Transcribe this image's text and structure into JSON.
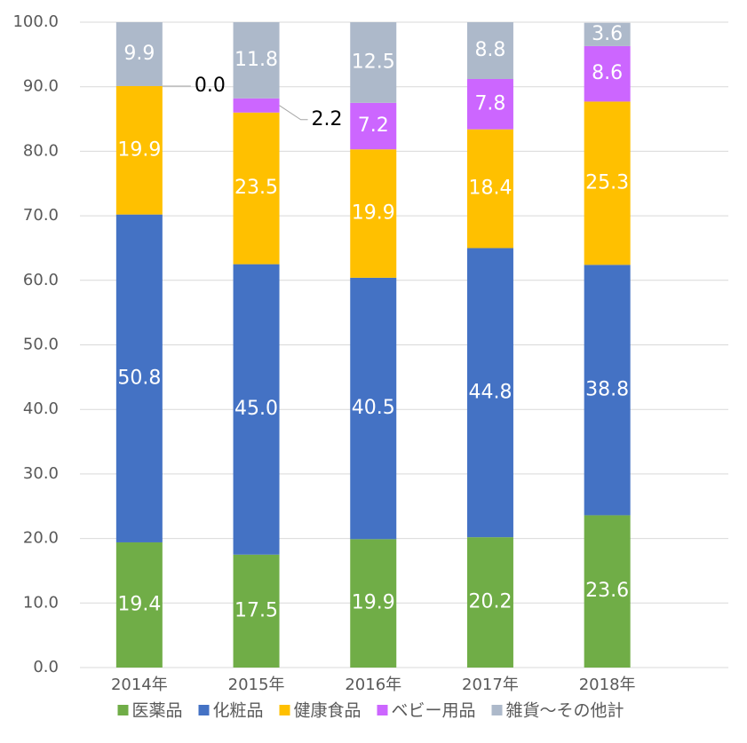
{
  "chart_data": {
    "type": "stacked_bar",
    "categories": [
      "2014年",
      "2015年",
      "2016年",
      "2017年",
      "2018年"
    ],
    "series": [
      {
        "name": "医薬品",
        "color": "#70ad47",
        "values": [
          19.4,
          17.5,
          19.9,
          20.2,
          23.6
        ]
      },
      {
        "name": "化粧品",
        "color": "#4472c4",
        "values": [
          50.8,
          45.0,
          40.5,
          44.8,
          38.8
        ],
        "value_labels": [
          "50.8",
          "45.0",
          "40.5",
          "44.8",
          "38.8"
        ]
      },
      {
        "name": "健康食品",
        "color": "#ffc000",
        "values": [
          19.9,
          23.5,
          19.9,
          18.4,
          25.3
        ]
      },
      {
        "name": "ベビー用品",
        "color": "#cc66ff",
        "values": [
          0.0,
          2.2,
          7.2,
          7.8,
          8.6
        ],
        "value_labels": [
          "0.0",
          "2.2",
          "7.2",
          "7.8",
          "8.6"
        ]
      },
      {
        "name": "雑貨～その他計",
        "color": "#adb9ca",
        "values": [
          9.9,
          11.8,
          12.5,
          8.8,
          3.6
        ]
      }
    ],
    "ylim": [
      0,
      100
    ],
    "yticks": [
      {
        "value": 0,
        "label": "0.0"
      },
      {
        "value": 10,
        "label": "10.0"
      },
      {
        "value": 20,
        "label": "20.0"
      },
      {
        "value": 30,
        "label": "30.0"
      },
      {
        "value": 40,
        "label": "40.0"
      },
      {
        "value": 50,
        "label": "50.0"
      },
      {
        "value": 60,
        "label": "60.0"
      },
      {
        "value": 70,
        "label": "70.0"
      },
      {
        "value": 80,
        "label": "80.0"
      },
      {
        "value": 90,
        "label": "90.0"
      },
      {
        "value": 100,
        "label": "100.0"
      }
    ],
    "grid": true,
    "legend": "bottom"
  }
}
